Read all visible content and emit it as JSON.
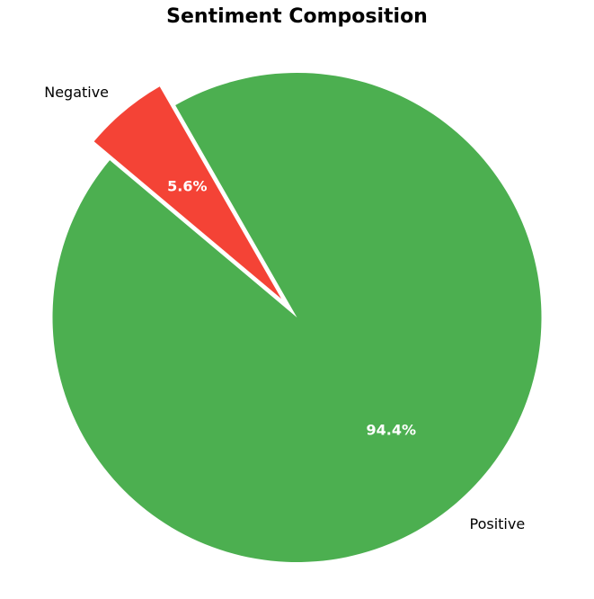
{
  "chart_data": {
    "type": "pie",
    "title": "Sentiment Composition",
    "slices": [
      {
        "label": "Positive",
        "value": 94.4,
        "pct_label": "94.4%",
        "color": "#4caf50",
        "exploded": false
      },
      {
        "label": "Negative",
        "value": 5.6,
        "pct_label": "5.6%",
        "color": "#f44336",
        "exploded": true
      }
    ],
    "start_angle_deg": 140,
    "direction": "counterclockwise",
    "legend": "none"
  }
}
